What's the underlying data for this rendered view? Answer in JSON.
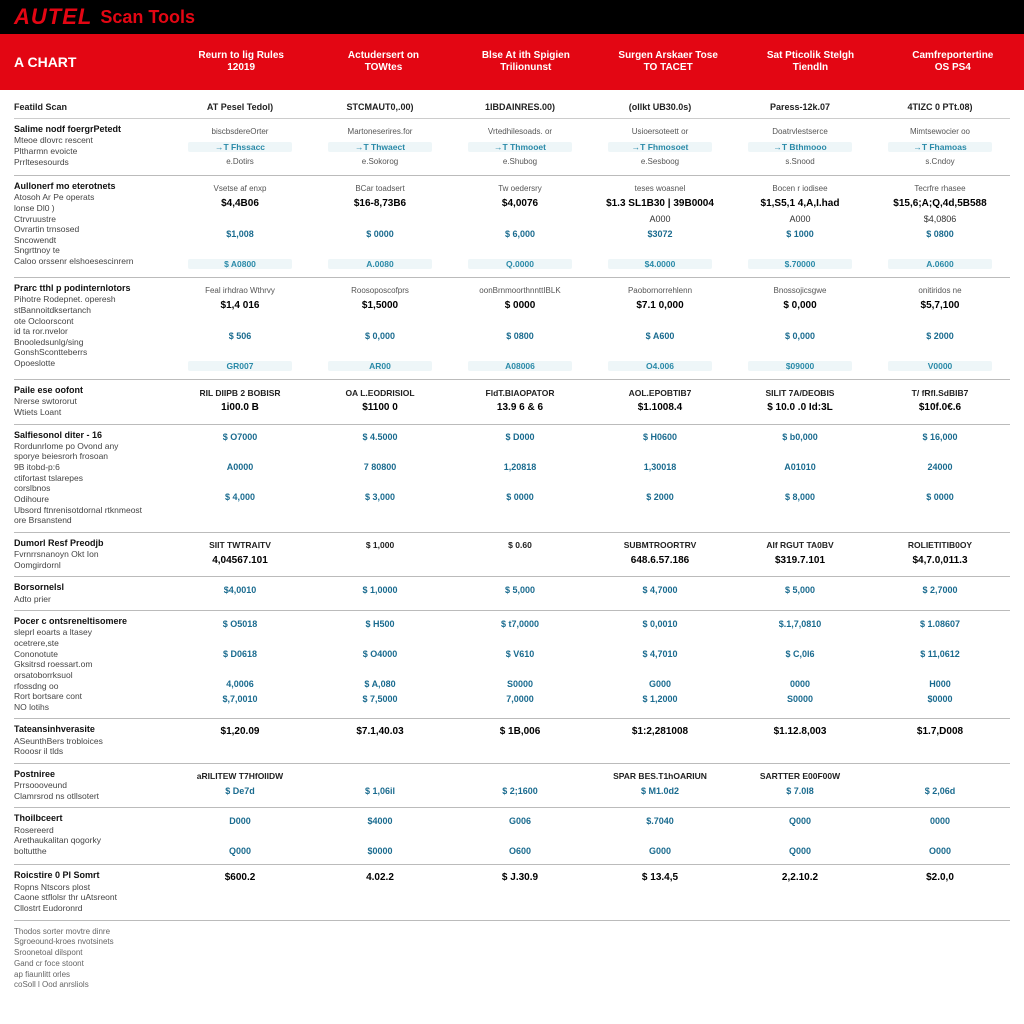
{
  "brand": "AUTEL",
  "brandSub": "Scan  Tools",
  "chartLabel": "A CHART",
  "headerCols": [
    "Reurn to lig Rules\n12019",
    "Actudersert on\nTOWtes",
    "Blse At ith Spigien\nTrilionunst",
    "Surgen Arskaer Tose\nTO TACET",
    "Sat Pticolik Stelgh\nTiendln",
    "Camfreportertine\nOS PS4"
  ],
  "subheadLabel": "Featild Scan",
  "subheads": [
    "AT Pesel Tedol)",
    "STCMAUT0,.00)",
    "1IBDAINRES.00)",
    "(ollkt UB30.0s)",
    "Paress-12k.07",
    "4TIZC 0 PTt.08)"
  ],
  "sections": [
    {
      "sideItems": [
        {
          "t": "Salime nodf foergrPetedt",
          "h": true
        },
        {
          "t": "Mteoe dlovrc rescent"
        },
        {
          "t": "Pltharmn evoicte"
        },
        {
          "t": "Prrltesesourds"
        }
      ],
      "rows": [
        {
          "cls": "small",
          "cells": [
            "biscbsdereOrter",
            "Martoneserires.for",
            "Vrtedhilesoads. or",
            "Usioersoteett or",
            "Doatrvlestserce",
            "Mimtsewocier oo"
          ]
        },
        {
          "cls": "highlight",
          "cells": [
            "→T Fhssacc",
            "→T Thwaect",
            "→T Thmooet",
            "→T Fhmosoet",
            "→T Bthmooo",
            "→T Fhamoas"
          ]
        },
        {
          "cls": "small",
          "cells": [
            "e.Dotirs",
            "e.Sokorog",
            "e.Shubog",
            "e.Sesboog",
            "s.Snood",
            "s.Cndoy"
          ]
        }
      ]
    },
    {
      "sideItems": [
        {
          "t": "Aullonerf mo eterotnets",
          "h": true
        },
        {
          "t": "Atosoh Ar Pe operats"
        },
        {
          "t": "lonse Dl0 )"
        },
        {
          "t": "Ctrvruustre"
        },
        {
          "t": "Ovrartin trnsosed"
        },
        {
          "t": "Sncowendt"
        },
        {
          "t": "Sngrttnoy te"
        },
        {
          "t": "Caloo orssenr elshoesescinrern"
        }
      ],
      "rows": [
        {
          "cls": "small",
          "cells": [
            "Vsetse af enxp",
            "BCar toadsert",
            "Tw oedersry",
            "teses woasnel",
            "Bocen r iodisee",
            "Tecrfre rhasee"
          ]
        },
        {
          "cls": "pricebold",
          "cells": [
            "$4,4B06",
            "$16-8,73B6",
            "$4,0076",
            "$1.3 SL1B30 | 39B0004",
            "$1,S5,1 4,A,I.had",
            "$15,6;A;Q,4d,5B588"
          ]
        },
        {
          "cls": "",
          "cells": [
            "",
            "",
            "",
            "A000",
            "A000",
            "$4,0806"
          ]
        },
        {
          "cls": "price",
          "cells": [
            "$1,008",
            "$ 0000",
            "$ 6,000",
            "$3072",
            "$ 1000",
            "$ 0800"
          ]
        },
        {
          "cls": "",
          "cells": [
            "",
            "",
            "",
            "",
            "",
            ""
          ]
        },
        {
          "cls": "highlight",
          "cells": [
            "$ A0800",
            "A.0080",
            "Q.0000",
            "$4.0000",
            "$.70000",
            "A.0600"
          ]
        }
      ]
    },
    {
      "sideItems": [
        {
          "t": "Prarc tthl p podinternlotors",
          "h": true
        },
        {
          "t": "Pihotre Rodepnet. operesh"
        },
        {
          "t": "stBannoitdksertanch"
        },
        {
          "t": "ote Ocloorscont"
        },
        {
          "t": "id ta ror.nvelor"
        },
        {
          "t": "Bnooledsunlg/sing"
        },
        {
          "t": "GonshScontteberrs"
        },
        {
          "t": "Opoeslotte"
        }
      ],
      "rows": [
        {
          "cls": "small",
          "cells": [
            "Feal irhdrao Wthrvy",
            "Roosoposcofprs",
            "oonBrnmoorthnnttIBLK",
            "Paobornorrehlenn",
            "Bnossojicsgwe",
            "onitiridos ne"
          ]
        },
        {
          "cls": "pricebold",
          "cells": [
            "$1,4 016",
            "$1,5000",
            "$ 0000",
            "$7.1 0,000",
            "$ 0,000",
            "$5,7,100"
          ]
        },
        {
          "cls": "",
          "cells": [
            "",
            "",
            "",
            "",
            "",
            ""
          ]
        },
        {
          "cls": "price",
          "cells": [
            "$ 506",
            "$ 0,000",
            "$ 0800",
            "$ A600",
            "$ 0,000",
            "$ 2000"
          ]
        },
        {
          "cls": "",
          "cells": [
            "",
            "",
            "",
            "",
            "",
            ""
          ]
        },
        {
          "cls": "highlight",
          "cells": [
            "GR007",
            "AR00",
            "A08006",
            "O4.006",
            "$09000",
            "V0000"
          ]
        }
      ]
    },
    {
      "sideItems": [
        {
          "t": "Paile ese oofont",
          "h": true
        },
        {
          "t": "Nrerse swtororut"
        },
        {
          "t": "Wtiets Loant"
        }
      ],
      "rows": [
        {
          "cls": "catlabel",
          "cells": [
            "RIL DIIPB 2 BOBISR",
            "OA L.EODRISIOL",
            "FldT.BIAOPATOR",
            "AOL.EPOBTIB7",
            "SILIT 7A/DEOBIS",
            "T/ fRfl.SdBIB7"
          ]
        },
        {
          "cls": "pricebold",
          "cells": [
            "1i00.0 B",
            "$1100 0",
            "13.9 6 & 6",
            "$1.1008.4",
            "$ 10.0 .0 Id:3L",
            "$10f.0€.6"
          ]
        }
      ]
    },
    {
      "sideItems": [
        {
          "t": "Salfiesonol diter - 16",
          "h": true
        },
        {
          "t": "Rordunrlome po Ovond any"
        },
        {
          "t": "sporye beiesrorh frosoan"
        },
        {
          "t": "9B itobd-p:6"
        },
        {
          "t": "ctifortast tslarepes"
        },
        {
          "t": "corslbnos"
        },
        {
          "t": "Odihoure"
        },
        {
          "t": "Ubsord ftnrenisotdornal rtknmeost"
        },
        {
          "t": "ore Brsanstend"
        }
      ],
      "rows": [
        {
          "cls": "price",
          "cells": [
            "$ O7000",
            "$ 4.5000",
            "$ D000",
            "$ H0600",
            "$ b0,000",
            "$ 16,000"
          ]
        },
        {
          "cls": "",
          "cells": [
            "",
            "",
            "",
            "",
            "",
            ""
          ]
        },
        {
          "cls": "price",
          "cells": [
            "A0000",
            "7 80800",
            "1,20818",
            "1,30018",
            "A01010",
            "24000"
          ]
        },
        {
          "cls": "",
          "cells": [
            "",
            "",
            "",
            "",
            "",
            ""
          ]
        },
        {
          "cls": "price",
          "cells": [
            "$ 4,000",
            "$ 3,000",
            "$ 0000",
            "$ 2000",
            "$ 8,000",
            "$ 0000"
          ]
        }
      ]
    },
    {
      "sideItems": [
        {
          "t": "Dumorl Resf Preodjb",
          "h": true
        },
        {
          "t": "Fvrnrrsnanoyn Okt Ion"
        },
        {
          "t": "Oomgirdornl"
        }
      ],
      "rows": [
        {
          "cls": "catlabel",
          "cells": [
            "SIIT TWTRAITV",
            "$ 1,000",
            "$ 0.60",
            "SUBMTROORTRV",
            "AIf RGUT TA0BV",
            "ROLIETITIB0OY"
          ]
        },
        {
          "cls": "pricebold",
          "cells": [
            "4,04567.101",
            "",
            "",
            "648.6.57.186",
            "$319.7.101",
            "$4,7.0,011.3"
          ]
        }
      ]
    },
    {
      "sideItems": [
        {
          "t": "Borsornelsl",
          "h": true
        },
        {
          "t": "Adto prier"
        }
      ],
      "rows": [
        {
          "cls": "price",
          "cells": [
            "$4,0010",
            "$ 1,0000",
            "$ 5,000",
            "$ 4,7000",
            "$ 5,000",
            "$ 2,7000"
          ]
        }
      ]
    },
    {
      "sideItems": [
        {
          "t": "Pocer c ontsreneltisomere",
          "h": true
        },
        {
          "t": "sleprl eoarts a ltasey"
        },
        {
          "t": "ocetrere,ste"
        },
        {
          "t": "Cononotute"
        },
        {
          "t": "Gksitrsd roessart.om"
        },
        {
          "t": "orsatoborrksuol"
        },
        {
          "t": "rfossdng oo"
        },
        {
          "t": "Rort bortsare cont"
        },
        {
          "t": "NO lotihs"
        }
      ],
      "rows": [
        {
          "cls": "price",
          "cells": [
            "$ O5018",
            "$ H500",
            "$ t7,0000",
            "$ 0,0010",
            "$.1,7,0810",
            "$ 1.08607"
          ]
        },
        {
          "cls": "",
          "cells": [
            "",
            "",
            "",
            "",
            "",
            ""
          ]
        },
        {
          "cls": "price",
          "cells": [
            "$ D0618",
            "$ O4000",
            "$ V610",
            "$ 4,7010",
            "$ C,0l6",
            "$ 11,0612"
          ]
        },
        {
          "cls": "",
          "cells": [
            "",
            "",
            "",
            "",
            "",
            ""
          ]
        },
        {
          "cls": "price",
          "cells": [
            "4,0006",
            "$ A,080",
            "S0000",
            "G000",
            "0000",
            "H000"
          ]
        },
        {
          "cls": "price",
          "cells": [
            "$,7,0010",
            "$ 7,5000",
            "7,0000",
            "$ 1,2000",
            "S0000",
            "$0000"
          ]
        }
      ]
    },
    {
      "sideItems": [
        {
          "t": "Tateansinhverasite",
          "h": true
        },
        {
          "t": "ASeunthBers trobloices"
        },
        {
          "t": "Rooosr il tlds"
        }
      ],
      "rows": [
        {
          "cls": "pricebold",
          "cells": [
            "$1,20.09",
            "$7.1,40.03",
            "$ 1B,006",
            "$1:2,281008",
            "$1.12.8,003",
            "$1.7,D008"
          ]
        }
      ]
    },
    {
      "sideItems": [
        {
          "t": "Postniree",
          "h": true
        },
        {
          "t": "Prrsoooveund"
        },
        {
          "t": "Clamrsrod ns otllsotert"
        }
      ],
      "rows": [
        {
          "cls": "catlabel",
          "cells": [
            "aRILITEW T7HfOIIDW",
            "",
            "",
            "SPAR BES.T1hOARIUN",
            "SARTTER E00F00W",
            ""
          ]
        },
        {
          "cls": "price",
          "cells": [
            "$ De7d",
            "$ 1,06il",
            "$ 2;1600",
            "$ M1.0d2",
            "$ 7.0l8",
            "$ 2,06d"
          ]
        }
      ]
    },
    {
      "sideItems": [
        {
          "t": "Thoilbceert",
          "h": true
        },
        {
          "t": "Rosereerd"
        },
        {
          "t": "Arethaukalitan qogorky"
        },
        {
          "t": "boltutthe"
        }
      ],
      "rows": [
        {
          "cls": "price",
          "cells": [
            "D000",
            "$4000",
            "G006",
            "$.7040",
            "Q000",
            "0000"
          ]
        },
        {
          "cls": "",
          "cells": [
            "",
            "",
            "",
            "",
            "",
            ""
          ]
        },
        {
          "cls": "price",
          "cells": [
            "Q000",
            "$0000",
            "O600",
            "G000",
            "Q000",
            "O000"
          ]
        }
      ]
    },
    {
      "sideItems": [
        {
          "t": "Roicstire 0 Pl Somrt",
          "h": true
        },
        {
          "t": "Ropns Ntscors plost"
        },
        {
          "t": "Caone stflolsr thr uAtsreont"
        },
        {
          "t": "Cllostrt Eudoronrd"
        }
      ],
      "rows": [
        {
          "cls": "pricebold",
          "cells": [
            "$600.2",
            "4.02.2",
            "$ J.30.9",
            "$ 13.4,5",
            "2,2.10.2",
            "$2.0,0"
          ]
        }
      ]
    }
  ],
  "footnotes": [
    "Thodos sorter movtre dinre",
    "Sgroeound-kroes nvotsinets",
    "Sroonetoal dilspont",
    "Gand cr foce stoont",
    "ap fiaunlitt orles",
    "coSoll l Ood anrsliols"
  ]
}
